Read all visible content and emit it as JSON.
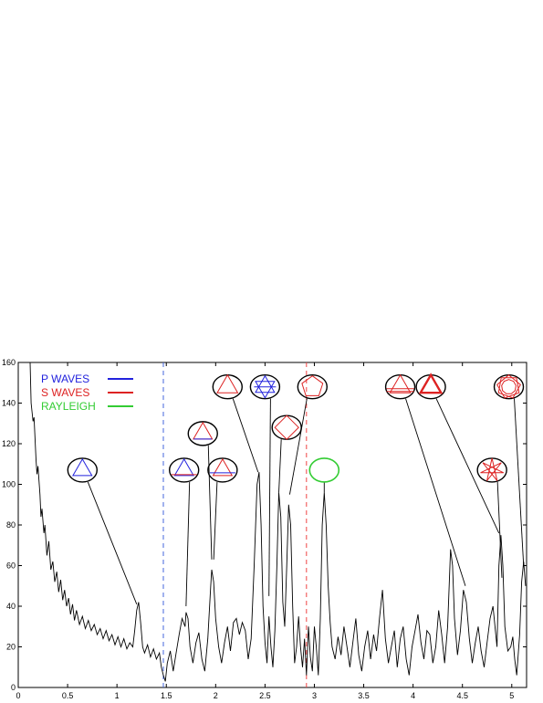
{
  "chart_data": {
    "type": "line",
    "title": "",
    "xlabel": "",
    "ylabel": "",
    "xlim": [
      0,
      5.15
    ],
    "ylim": [
      0,
      160
    ],
    "x_ticks": [
      "0",
      "0.5",
      "1",
      "1.5",
      "2",
      "2.5",
      "3",
      "3.5",
      "4",
      "4.5",
      "5"
    ],
    "y_ticks": [
      "0",
      "20",
      "40",
      "60",
      "80",
      "100",
      "120",
      "140",
      "160"
    ],
    "grid": false,
    "legend_position": "top-left",
    "legend": [
      {
        "label": "P WAVES",
        "color": "#2222dd"
      },
      {
        "label": "S WAVES",
        "color": "#dd2222"
      },
      {
        "label": "RAYLEIGH",
        "color": "#33cc33"
      }
    ],
    "reference_lines": [
      {
        "x": 1.47,
        "color": "#4466dd",
        "style": "dashed"
      },
      {
        "x": 2.92,
        "color": "#ee4444",
        "style": "dashed"
      }
    ],
    "series": [
      {
        "color": "#000000",
        "points": [
          [
            0.12,
            160
          ],
          [
            0.13,
            140
          ],
          [
            0.15,
            131
          ],
          [
            0.16,
            133
          ],
          [
            0.18,
            112
          ],
          [
            0.19,
            105
          ],
          [
            0.2,
            109
          ],
          [
            0.22,
            95
          ],
          [
            0.23,
            84
          ],
          [
            0.24,
            88
          ],
          [
            0.26,
            76
          ],
          [
            0.27,
            80
          ],
          [
            0.29,
            65
          ],
          [
            0.31,
            72
          ],
          [
            0.33,
            58
          ],
          [
            0.35,
            62
          ],
          [
            0.37,
            52
          ],
          [
            0.39,
            57
          ],
          [
            0.41,
            47
          ],
          [
            0.43,
            53
          ],
          [
            0.45,
            43
          ],
          [
            0.47,
            48
          ],
          [
            0.49,
            40
          ],
          [
            0.51,
            44
          ],
          [
            0.53,
            36
          ],
          [
            0.55,
            41
          ],
          [
            0.57,
            33
          ],
          [
            0.59,
            38
          ],
          [
            0.62,
            31
          ],
          [
            0.65,
            35
          ],
          [
            0.68,
            29
          ],
          [
            0.71,
            33
          ],
          [
            0.74,
            28
          ],
          [
            0.77,
            31
          ],
          [
            0.8,
            26
          ],
          [
            0.83,
            29
          ],
          [
            0.86,
            24
          ],
          [
            0.89,
            28
          ],
          [
            0.92,
            23
          ],
          [
            0.95,
            26
          ],
          [
            0.98,
            21
          ],
          [
            1.01,
            25
          ],
          [
            1.04,
            20
          ],
          [
            1.07,
            24
          ],
          [
            1.1,
            19
          ],
          [
            1.13,
            22
          ],
          [
            1.16,
            20
          ],
          [
            1.18,
            28
          ],
          [
            1.2,
            38
          ],
          [
            1.22,
            42
          ],
          [
            1.24,
            32
          ],
          [
            1.26,
            20
          ],
          [
            1.28,
            17
          ],
          [
            1.31,
            21
          ],
          [
            1.34,
            15
          ],
          [
            1.37,
            19
          ],
          [
            1.4,
            14
          ],
          [
            1.43,
            17
          ],
          [
            1.45,
            10
          ],
          [
            1.47,
            6
          ],
          [
            1.49,
            3
          ],
          [
            1.51,
            12
          ],
          [
            1.54,
            18
          ],
          [
            1.57,
            8
          ],
          [
            1.6,
            17
          ],
          [
            1.63,
            26
          ],
          [
            1.66,
            34
          ],
          [
            1.69,
            30
          ],
          [
            1.7,
            37
          ],
          [
            1.72,
            34
          ],
          [
            1.74,
            20
          ],
          [
            1.77,
            12
          ],
          [
            1.8,
            22
          ],
          [
            1.83,
            27
          ],
          [
            1.86,
            14
          ],
          [
            1.89,
            8
          ],
          [
            1.92,
            24
          ],
          [
            1.95,
            50
          ],
          [
            1.96,
            58
          ],
          [
            1.98,
            52
          ],
          [
            2.0,
            34
          ],
          [
            2.03,
            20
          ],
          [
            2.06,
            12
          ],
          [
            2.09,
            22
          ],
          [
            2.12,
            30
          ],
          [
            2.15,
            18
          ],
          [
            2.18,
            32
          ],
          [
            2.21,
            34
          ],
          [
            2.24,
            26
          ],
          [
            2.27,
            32
          ],
          [
            2.3,
            28
          ],
          [
            2.33,
            14
          ],
          [
            2.36,
            24
          ],
          [
            2.39,
            60
          ],
          [
            2.42,
            100
          ],
          [
            2.44,
            106
          ],
          [
            2.46,
            80
          ],
          [
            2.48,
            40
          ],
          [
            2.5,
            22
          ],
          [
            2.52,
            12
          ],
          [
            2.54,
            35
          ],
          [
            2.56,
            20
          ],
          [
            2.58,
            10
          ],
          [
            2.6,
            28
          ],
          [
            2.62,
            60
          ],
          [
            2.64,
            96
          ],
          [
            2.66,
            84
          ],
          [
            2.68,
            42
          ],
          [
            2.7,
            30
          ],
          [
            2.72,
            60
          ],
          [
            2.74,
            90
          ],
          [
            2.76,
            80
          ],
          [
            2.78,
            40
          ],
          [
            2.8,
            12
          ],
          [
            2.82,
            20
          ],
          [
            2.84,
            35
          ],
          [
            2.86,
            20
          ],
          [
            2.88,
            10
          ],
          [
            2.9,
            24
          ],
          [
            2.92,
            6
          ],
          [
            2.94,
            30
          ],
          [
            2.96,
            15
          ],
          [
            2.98,
            8
          ],
          [
            3.0,
            30
          ],
          [
            3.02,
            20
          ],
          [
            3.04,
            6
          ],
          [
            3.06,
            34
          ],
          [
            3.08,
            80
          ],
          [
            3.1,
            96
          ],
          [
            3.12,
            80
          ],
          [
            3.14,
            50
          ],
          [
            3.16,
            32
          ],
          [
            3.18,
            20
          ],
          [
            3.21,
            14
          ],
          [
            3.24,
            25
          ],
          [
            3.27,
            16
          ],
          [
            3.3,
            30
          ],
          [
            3.33,
            20
          ],
          [
            3.36,
            10
          ],
          [
            3.39,
            22
          ],
          [
            3.42,
            34
          ],
          [
            3.45,
            16
          ],
          [
            3.48,
            8
          ],
          [
            3.51,
            20
          ],
          [
            3.54,
            28
          ],
          [
            3.57,
            14
          ],
          [
            3.6,
            26
          ],
          [
            3.63,
            18
          ],
          [
            3.66,
            34
          ],
          [
            3.69,
            48
          ],
          [
            3.72,
            24
          ],
          [
            3.75,
            12
          ],
          [
            3.78,
            20
          ],
          [
            3.81,
            28
          ],
          [
            3.84,
            10
          ],
          [
            3.87,
            24
          ],
          [
            3.9,
            30
          ],
          [
            3.93,
            14
          ],
          [
            3.96,
            6
          ],
          [
            3.99,
            20
          ],
          [
            4.02,
            28
          ],
          [
            4.05,
            36
          ],
          [
            4.08,
            22
          ],
          [
            4.11,
            14
          ],
          [
            4.14,
            28
          ],
          [
            4.17,
            26
          ],
          [
            4.2,
            12
          ],
          [
            4.23,
            20
          ],
          [
            4.26,
            38
          ],
          [
            4.29,
            26
          ],
          [
            4.32,
            12
          ],
          [
            4.35,
            30
          ],
          [
            4.38,
            68
          ],
          [
            4.4,
            60
          ],
          [
            4.42,
            34
          ],
          [
            4.45,
            16
          ],
          [
            4.48,
            28
          ],
          [
            4.51,
            48
          ],
          [
            4.54,
            42
          ],
          [
            4.57,
            24
          ],
          [
            4.6,
            12
          ],
          [
            4.63,
            22
          ],
          [
            4.66,
            30
          ],
          [
            4.69,
            18
          ],
          [
            4.72,
            10
          ],
          [
            4.75,
            22
          ],
          [
            4.78,
            34
          ],
          [
            4.81,
            40
          ],
          [
            4.83,
            30
          ],
          [
            4.85,
            20
          ],
          [
            4.87,
            60
          ],
          [
            4.89,
            75
          ],
          [
            4.91,
            60
          ],
          [
            4.93,
            30
          ],
          [
            4.96,
            18
          ],
          [
            4.99,
            20
          ],
          [
            5.01,
            25
          ],
          [
            5.03,
            14
          ],
          [
            5.05,
            6
          ],
          [
            5.08,
            26
          ],
          [
            5.1,
            52
          ],
          [
            5.12,
            62
          ],
          [
            5.14,
            50
          ]
        ]
      }
    ],
    "annotations": [
      {
        "name": "triangle",
        "color": "#2222dd",
        "type": "triangle",
        "x": 0.65,
        "y": 107,
        "tx": 1.2,
        "ty": 41
      },
      {
        "name": "triangle-rotated",
        "color": "#2222dd",
        "type": "triangle-flat-bottom",
        "x": 1.68,
        "y": 107,
        "tx": 1.7,
        "ty": 40
      },
      {
        "name": "triangle-high",
        "color": "#dd2222",
        "type": "triangle-small",
        "x": 1.87,
        "y": 125,
        "tx": 1.96,
        "ty": 63
      },
      {
        "name": "triangle-mixed",
        "color": "#dd2222",
        "type": "triangle-mixed",
        "x": 2.07,
        "y": 107,
        "tx": 1.98,
        "ty": 63
      },
      {
        "name": "triangle-large",
        "color": "#dd2222",
        "type": "triangle-large",
        "x": 2.12,
        "y": 148,
        "tx": 2.43,
        "ty": 106
      },
      {
        "name": "star",
        "color": "#2222dd",
        "type": "hexagram",
        "x": 2.5,
        "y": 148,
        "tx": 2.54,
        "ty": 45
      },
      {
        "name": "diamond",
        "color": "#dd2222",
        "type": "diamond",
        "x": 2.72,
        "y": 128,
        "tx": 2.64,
        "ty": 96
      },
      {
        "name": "pentagon",
        "color": "#dd2222",
        "type": "pentagon",
        "x": 2.98,
        "y": 148,
        "tx": 2.75,
        "ty": 95
      },
      {
        "name": "circle",
        "color": "#33cc33",
        "type": "rayleigh",
        "x": 3.1,
        "y": 107,
        "tx": 3.1,
        "ty": 96
      },
      {
        "name": "triangle-double",
        "color": "#dd2222",
        "type": "triangle-double",
        "x": 3.87,
        "y": 148,
        "tx": 4.53,
        "ty": 50
      },
      {
        "name": "triangle-bold",
        "color": "#dd2222",
        "type": "triangle-bold",
        "x": 4.18,
        "y": 148,
        "tx": 4.87,
        "ty": 76
      },
      {
        "name": "star-net",
        "color": "#dd2222",
        "type": "star-net",
        "x": 4.8,
        "y": 107,
        "tx": 4.9,
        "ty": 54
      },
      {
        "name": "circle-net",
        "color": "#dd2222",
        "type": "circle-net",
        "x": 4.97,
        "y": 148,
        "tx": 5.12,
        "ty": 60
      }
    ]
  }
}
